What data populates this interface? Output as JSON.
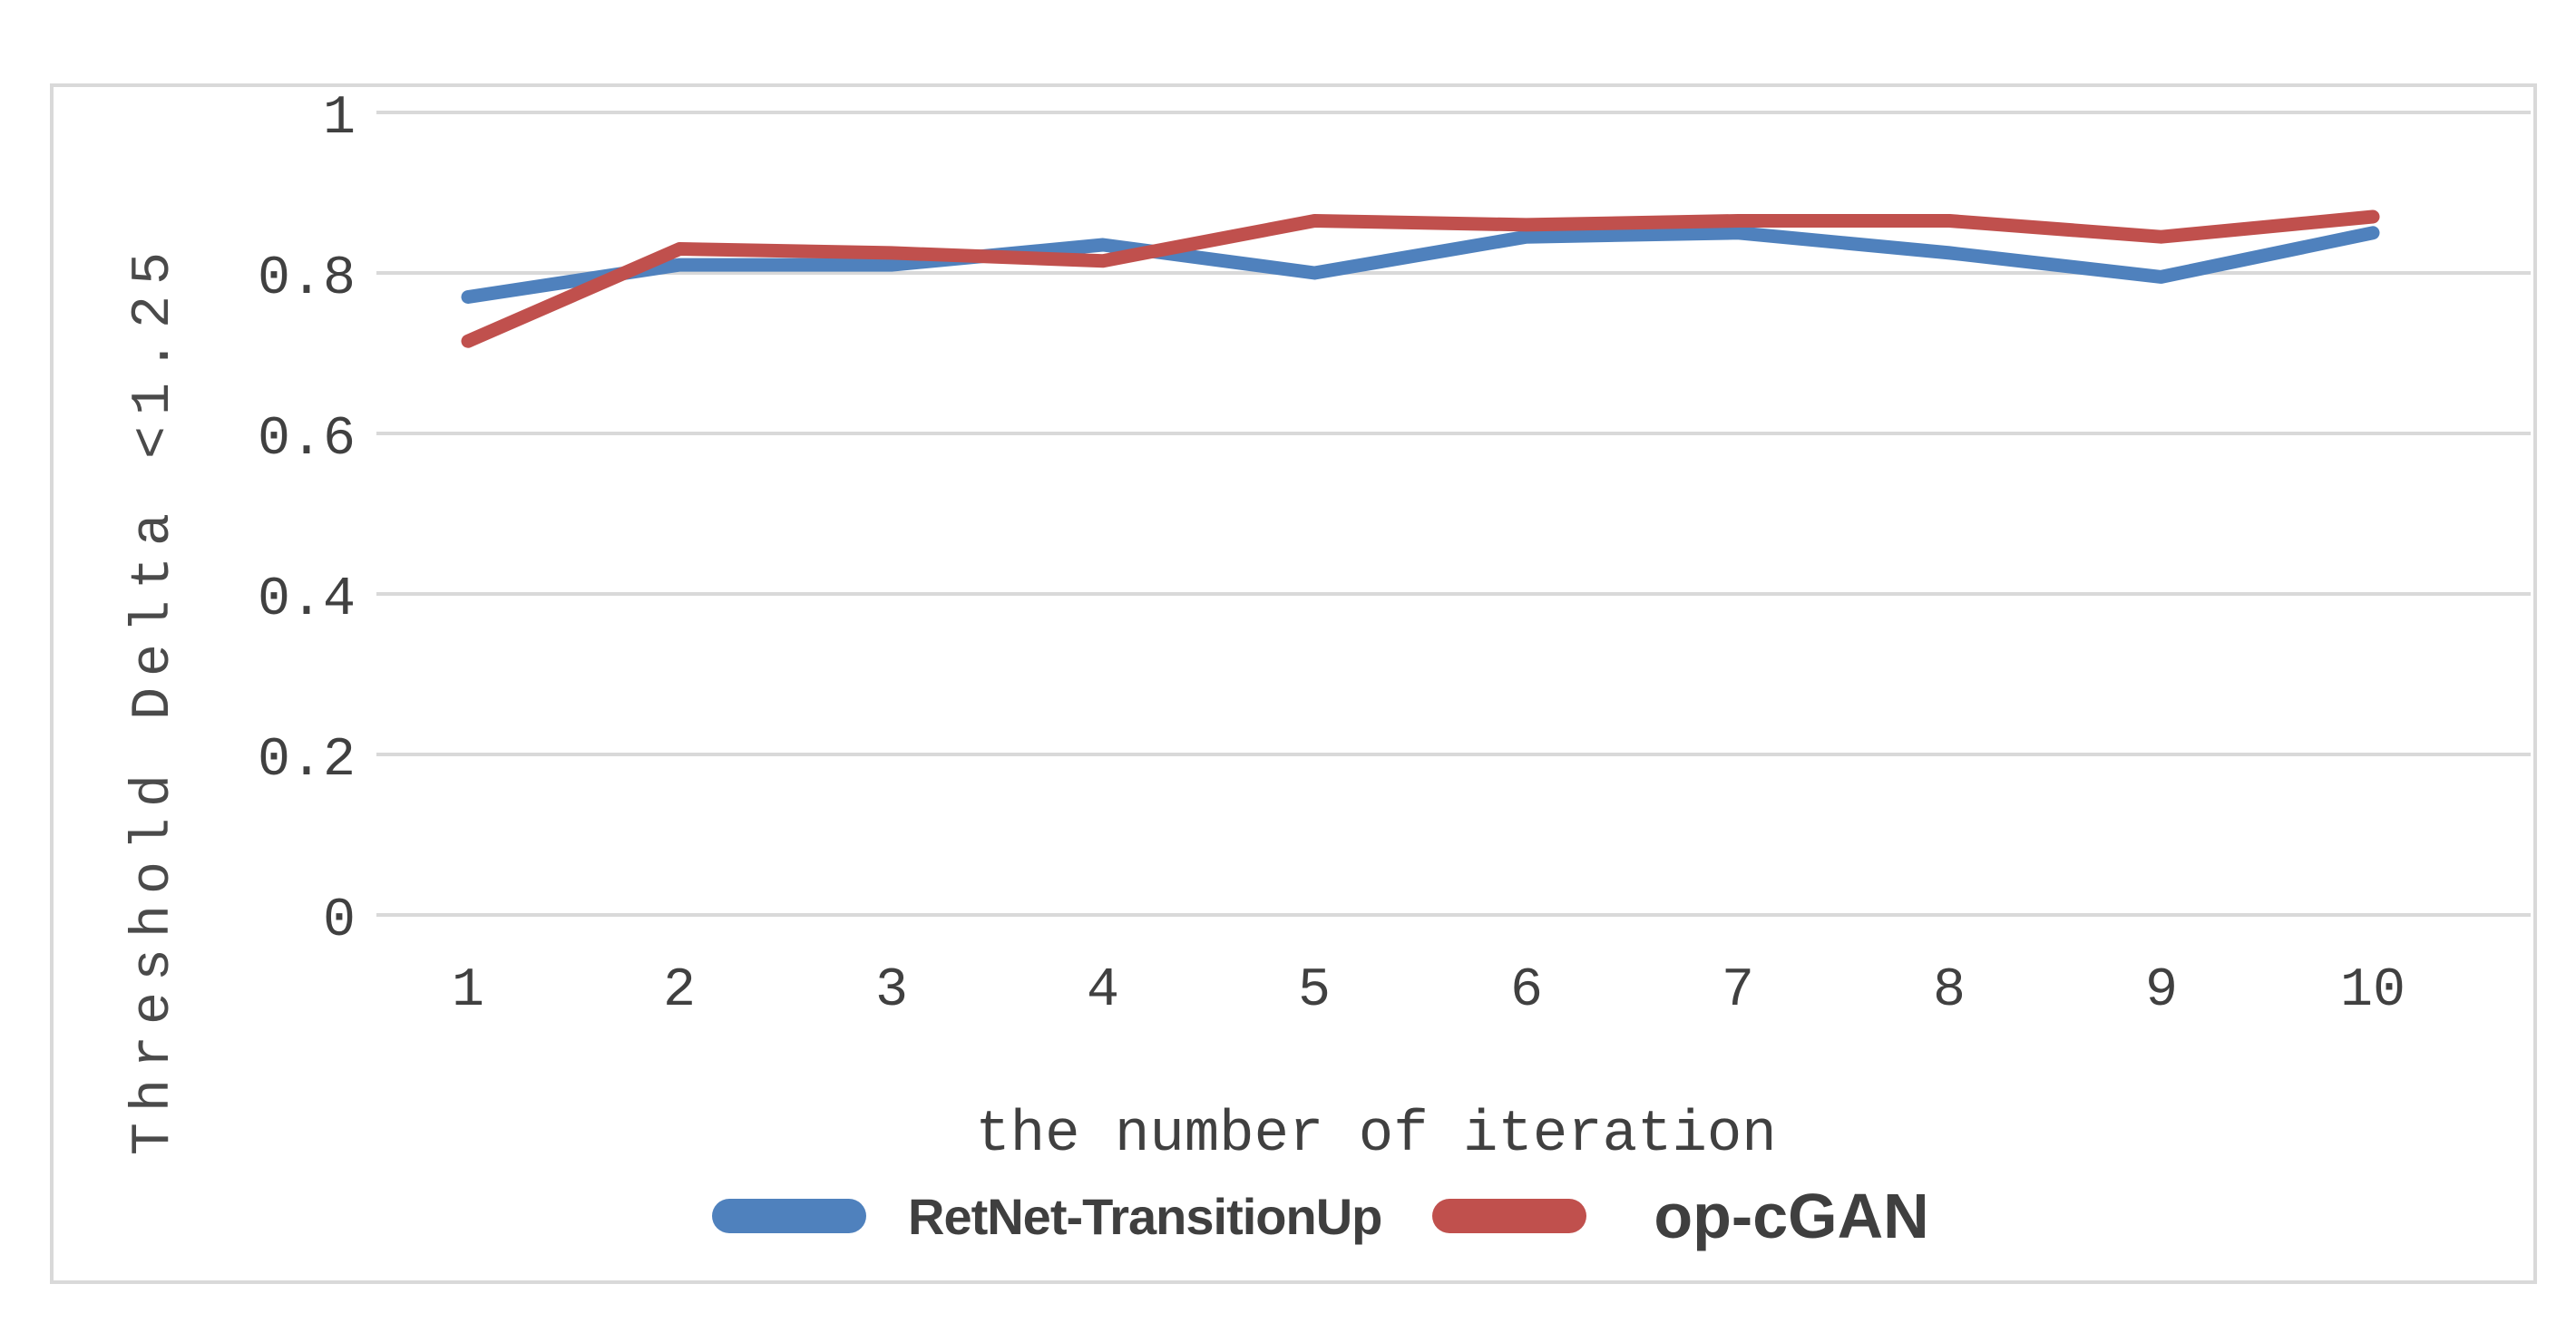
{
  "chart_data": {
    "type": "line",
    "title": "",
    "xlabel": "the number of iteration",
    "ylabel": "Threshold Delta <1.25",
    "x_labels": [
      "1",
      "2",
      "3",
      "4",
      "5",
      "6",
      "7",
      "8",
      "9",
      "10"
    ],
    "ytick_labels": [
      "1",
      "0.8",
      "0.6",
      "0.4",
      "0.2",
      "0"
    ],
    "ytick_values": [
      1.0,
      0.8,
      0.6,
      0.4,
      0.2,
      0.0
    ],
    "ylim": [
      0,
      1
    ],
    "grid": "horizontal-only",
    "gridline_color": "#d9d9d9",
    "legend_position": "bottom",
    "series": [
      {
        "name": "RetNet-TransitionUp",
        "color": "#4F81BD",
        "values": [
          0.77,
          0.81,
          0.81,
          0.835,
          0.8,
          0.845,
          0.85,
          0.825,
          0.795,
          0.85
        ]
      },
      {
        "name": "op-cGAN",
        "color": "#C0504D",
        "values": [
          0.715,
          0.83,
          0.825,
          0.815,
          0.865,
          0.86,
          0.865,
          0.865,
          0.845,
          0.87
        ]
      }
    ]
  },
  "frame": {
    "border_color": "#d9d9d9",
    "background_color": "#ffffff",
    "text_color": "#404040"
  }
}
